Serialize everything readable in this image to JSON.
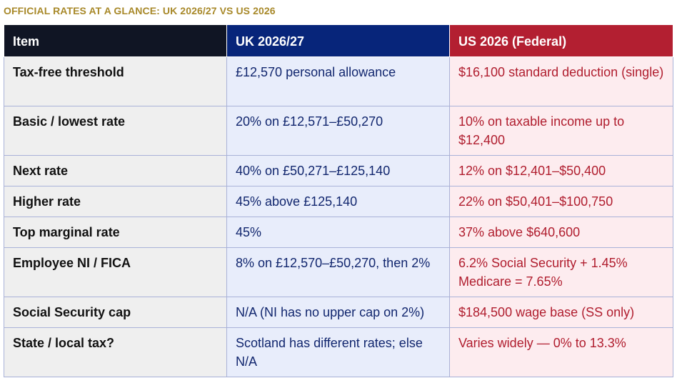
{
  "title": "OFFICIAL RATES AT A GLANCE: UK 2026/27 VS US 2026",
  "colors": {
    "title": "#a8892a",
    "header_item": "#101524",
    "header_uk": "#07257a",
    "header_us": "#b31f31",
    "uk_text": "#11266e",
    "us_text": "#b01d2e"
  },
  "table": {
    "headers": [
      "Item",
      "UK 2026/27",
      "US 2026 (Federal)"
    ],
    "rows": [
      [
        "Tax-free threshold",
        "£12,570 personal allowance",
        "$16,100 standard deduction (single)"
      ],
      [
        "Basic / lowest rate",
        "20% on £12,571–£50,270",
        "10% on taxable income up to $12,400"
      ],
      [
        "Next rate",
        "40% on £50,271–£125,140",
        "12% on $12,401–$50,400"
      ],
      [
        "Higher rate",
        "45% above £125,140",
        "22% on $50,401–$100,750"
      ],
      [
        "Top marginal rate",
        "45%",
        "37% above $640,600"
      ],
      [
        "Employee NI / FICA",
        "8% on £12,570–£50,270, then 2%",
        "6.2% Social Security + 1.45% Medicare = 7.65%"
      ],
      [
        "Social Security cap",
        "N/A (NI has no upper cap on 2%)",
        "$184,500 wage base (SS only)"
      ],
      [
        "State / local tax?",
        "Scotland has different rates; else N/A",
        "Varies widely — 0% to 13.3%"
      ]
    ]
  }
}
